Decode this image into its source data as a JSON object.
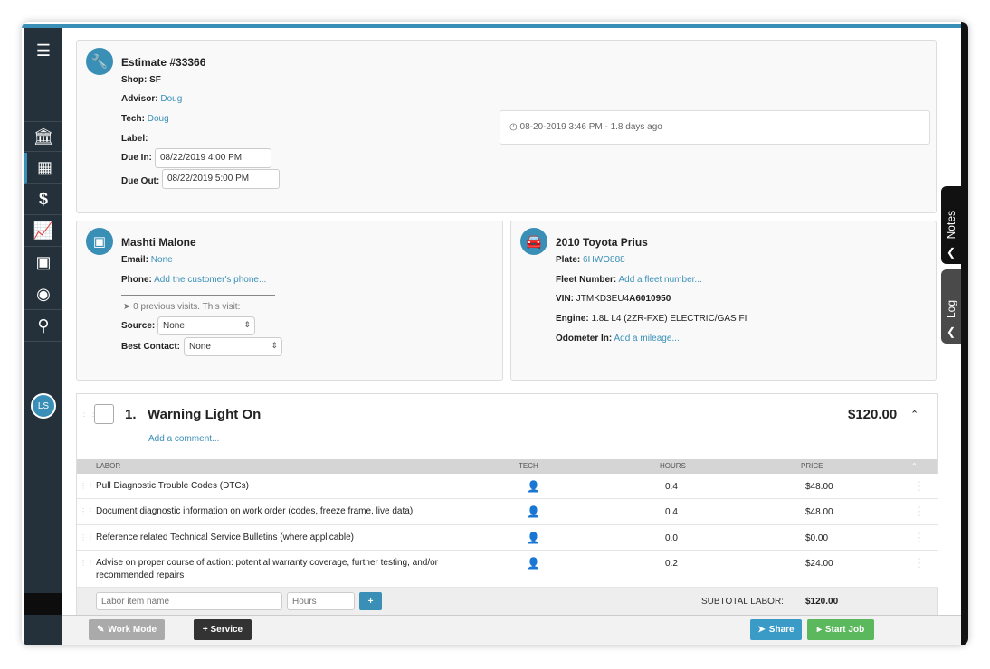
{
  "sidebar": {
    "items": [
      "menu-icon",
      "shop-icon",
      "calendar-icon",
      "dollar-icon",
      "chart-icon",
      "contacts-icon",
      "tire-icon",
      "search-icon"
    ],
    "avatar": "LS"
  },
  "estimate": {
    "title": "Estimate #33366",
    "shop_label": "Shop:",
    "shop": "SF",
    "advisor_label": "Advisor:",
    "advisor": "Doug",
    "tech_label": "Tech:",
    "tech": "Doug",
    "label_label": "Label:",
    "due_in_label": "Due In:",
    "due_in": "08/22/2019 4:00 PM",
    "due_out_label": "Due Out:",
    "due_out": "08/22/2019 5:00 PM",
    "timestamp": "08-20-2019 3:46 PM - 1.8 days ago"
  },
  "customer": {
    "name": "Mashti Malone",
    "email_label": "Email:",
    "email": "None",
    "phone_label": "Phone:",
    "phone": "Add the customer's phone...",
    "visits": "0 previous visits. This visit:",
    "source_label": "Source:",
    "source": "None",
    "best_contact_label": "Best Contact:",
    "best_contact": "None"
  },
  "vehicle": {
    "title": "2010 Toyota Prius",
    "plate_label": "Plate:",
    "plate": "6HWO888",
    "fleet_label": "Fleet Number:",
    "fleet": "Add a fleet number...",
    "vin_label": "VIN:",
    "vin_a": "JTMKD3EU4",
    "vin_b": "A6010950",
    "engine_label": "Engine:",
    "engine": "1.8L L4 (2ZR-FXE) ELECTRIC/GAS FI",
    "odometer_label": "Odometer In:",
    "odometer": "Add a mileage..."
  },
  "side_tabs": {
    "notes": "Notes",
    "log": "Log"
  },
  "service": {
    "number": "1.",
    "title": "Warning Light On",
    "total": "$120.00",
    "comment": "Add a comment...",
    "columns": [
      "LABOR",
      "TECH",
      "HOURS",
      "PRICE"
    ],
    "rows": [
      {
        "name": "Pull Diagnostic Trouble Codes (DTCs)",
        "hours": "0.4",
        "price": "$48.00"
      },
      {
        "name": "Document diagnostic information on work order (codes, freeze frame, live data)",
        "hours": "0.4",
        "price": "$48.00"
      },
      {
        "name": "Reference related Technical Service Bulletins (where applicable)",
        "hours": "0.0",
        "price": "$0.00"
      },
      {
        "name": "Advise on proper course of action: potential warranty coverage, further testing, and/or recommended repairs",
        "hours": "0.2",
        "price": "$24.00"
      }
    ],
    "labor_placeholder": "Labor item name",
    "hours_placeholder": "Hours",
    "add": "+",
    "subtotal_label": "SUBTOTAL LABOR:",
    "subtotal": "$120.00"
  },
  "footer": {
    "work_mode": "Work Mode",
    "service": "+ Service",
    "share": "Share",
    "start_job": "Start Job"
  },
  "colors": {
    "accent": "#3a8fb7",
    "sidebar": "#25313a",
    "start": "#5cb85c"
  }
}
